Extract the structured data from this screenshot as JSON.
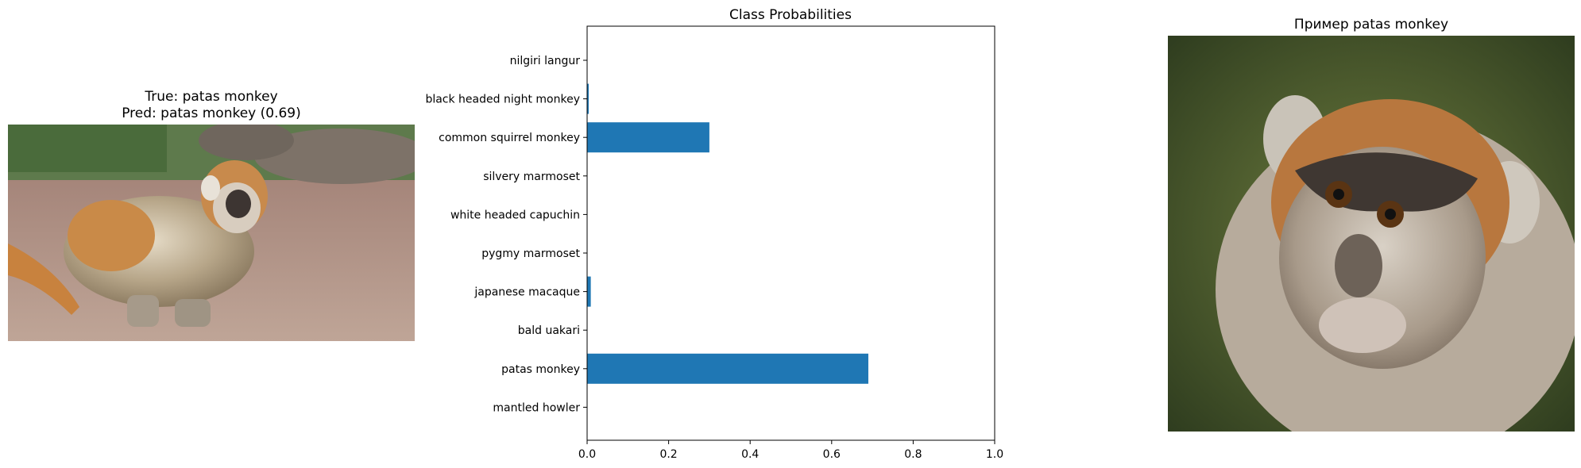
{
  "left_panel": {
    "title_true": "True: patas monkey",
    "title_pred": "Pred: patas monkey (0.69)"
  },
  "right_panel": {
    "title": "Пример patas monkey"
  },
  "colors": {
    "bar": "#1f77b4"
  },
  "chart_data": {
    "type": "bar",
    "orientation": "horizontal",
    "title": "Class Probabilities",
    "xlabel": "",
    "ylabel": "",
    "categories": [
      "nilgiri langur",
      "black headed night monkey",
      "common squirrel monkey",
      "silvery marmoset",
      "white headed capuchin",
      "pygmy marmoset",
      "japanese macaque",
      "bald uakari",
      "patas monkey",
      "mantled howler"
    ],
    "values": [
      0.0,
      0.004,
      0.3,
      0.0005,
      0.0005,
      0.0005,
      0.009,
      0.0005,
      0.69,
      0.0005
    ],
    "xlim": [
      0,
      1.0
    ],
    "xticks": [
      "0.0",
      "0.2",
      "0.4",
      "0.6",
      "0.8",
      "1.0"
    ],
    "grid": false,
    "legend": "none"
  }
}
